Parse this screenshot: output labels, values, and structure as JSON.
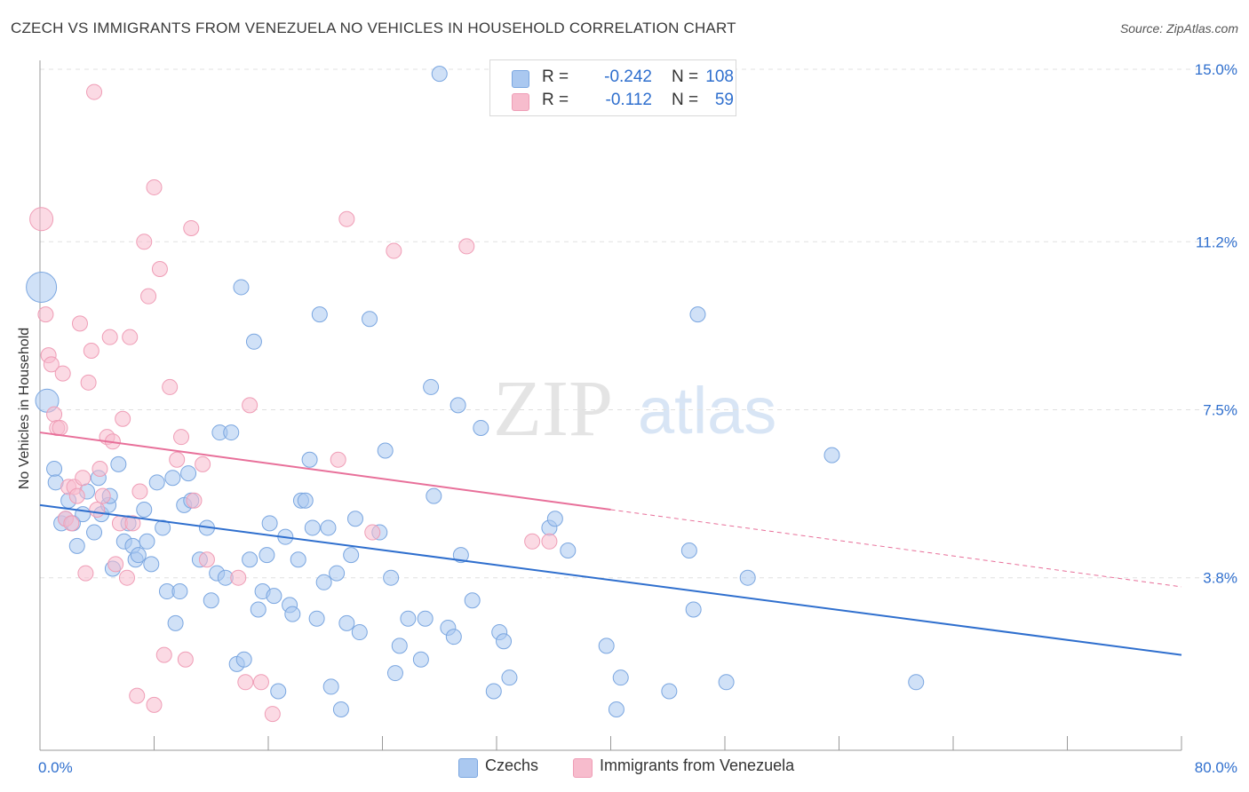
{
  "header": {
    "title": "CZECH VS IMMIGRANTS FROM VENEZUELA NO VEHICLES IN HOUSEHOLD CORRELATION CHART",
    "source": "Source: ZipAtlas.com"
  },
  "legend": {
    "rows": [
      {
        "r_label": "R =",
        "r_value": "-0.242",
        "n_label": "N =",
        "n_value": "108"
      },
      {
        "r_label": "R =",
        "r_value": "-0.112",
        "n_label": "N =",
        "n_value": "59"
      }
    ]
  },
  "bottom_legend": [
    "Czechs",
    "Immigrants from Venezuela"
  ],
  "colors": {
    "czechs_fill": "#aac8f0",
    "czechs_stroke": "#7aa6e0",
    "czechs_line": "#2f6fce",
    "venezuela_fill": "#f7bccd",
    "venezuela_stroke": "#ef9db6",
    "venezuela_line": "#e8709a",
    "tick_label": "#2f6fce",
    "grid": "#e0e0e0"
  },
  "chart_data": {
    "type": "scatter",
    "title": "CZECH VS IMMIGRANTS FROM VENEZUELA NO VEHICLES IN HOUSEHOLD CORRELATION CHART",
    "xlabel": "",
    "ylabel": "No Vehicles in Household",
    "xlim": [
      0,
      80
    ],
    "ylim": [
      0,
      15.0
    ],
    "x_tick_labels": [
      "0.0%",
      "80.0%"
    ],
    "y_ticks": [
      3.8,
      7.5,
      11.2,
      15.0
    ],
    "y_tick_labels": [
      "3.8%",
      "7.5%",
      "11.2%",
      "15.0%"
    ],
    "grid": true,
    "legend_position": "top-center",
    "watermark": "ZIPatlas",
    "series": [
      {
        "name": "Czechs",
        "r": -0.242,
        "n": 108,
        "trend": {
          "x": [
            0,
            80
          ],
          "y": [
            5.4,
            2.1
          ]
        },
        "points": [
          {
            "x": 0.1,
            "y": 10.2,
            "s": 3
          },
          {
            "x": 0.5,
            "y": 7.7,
            "s": 2
          },
          {
            "x": 1.0,
            "y": 6.2
          },
          {
            "x": 1.1,
            "y": 5.9
          },
          {
            "x": 1.5,
            "y": 5.0
          },
          {
            "x": 1.8,
            "y": 5.1
          },
          {
            "x": 2.0,
            "y": 5.5
          },
          {
            "x": 2.3,
            "y": 5.0
          },
          {
            "x": 2.6,
            "y": 4.5
          },
          {
            "x": 3.0,
            "y": 5.2
          },
          {
            "x": 3.3,
            "y": 5.7
          },
          {
            "x": 3.8,
            "y": 4.8
          },
          {
            "x": 4.1,
            "y": 6.0
          },
          {
            "x": 4.3,
            "y": 5.2
          },
          {
            "x": 4.8,
            "y": 5.4
          },
          {
            "x": 4.9,
            "y": 5.6
          },
          {
            "x": 5.1,
            "y": 4.0
          },
          {
            "x": 5.5,
            "y": 6.3
          },
          {
            "x": 5.9,
            "y": 4.6
          },
          {
            "x": 6.2,
            "y": 5.0
          },
          {
            "x": 6.5,
            "y": 4.5
          },
          {
            "x": 6.7,
            "y": 4.2
          },
          {
            "x": 6.9,
            "y": 4.3
          },
          {
            "x": 7.3,
            "y": 5.3
          },
          {
            "x": 7.5,
            "y": 4.6
          },
          {
            "x": 7.8,
            "y": 4.1
          },
          {
            "x": 8.2,
            "y": 5.9
          },
          {
            "x": 8.6,
            "y": 4.9
          },
          {
            "x": 8.9,
            "y": 3.5
          },
          {
            "x": 9.3,
            "y": 6.0
          },
          {
            "x": 9.5,
            "y": 2.8
          },
          {
            "x": 9.8,
            "y": 3.5
          },
          {
            "x": 10.1,
            "y": 5.4
          },
          {
            "x": 10.4,
            "y": 6.1
          },
          {
            "x": 10.6,
            "y": 5.5
          },
          {
            "x": 11.2,
            "y": 4.2
          },
          {
            "x": 11.7,
            "y": 4.9
          },
          {
            "x": 12.0,
            "y": 3.3
          },
          {
            "x": 12.4,
            "y": 3.9
          },
          {
            "x": 12.6,
            "y": 7.0
          },
          {
            "x": 13.0,
            "y": 3.8
          },
          {
            "x": 13.4,
            "y": 7.0
          },
          {
            "x": 13.8,
            "y": 1.9
          },
          {
            "x": 14.1,
            "y": 10.2
          },
          {
            "x": 14.3,
            "y": 2.0
          },
          {
            "x": 14.7,
            "y": 4.2
          },
          {
            "x": 15.0,
            "y": 9.0
          },
          {
            "x": 15.3,
            "y": 3.1
          },
          {
            "x": 15.6,
            "y": 3.5
          },
          {
            "x": 15.9,
            "y": 4.3
          },
          {
            "x": 16.1,
            "y": 5.0
          },
          {
            "x": 16.4,
            "y": 3.4
          },
          {
            "x": 16.7,
            "y": 1.3
          },
          {
            "x": 17.2,
            "y": 4.7
          },
          {
            "x": 17.5,
            "y": 3.2
          },
          {
            "x": 17.7,
            "y": 3.0
          },
          {
            "x": 18.1,
            "y": 4.2
          },
          {
            "x": 18.3,
            "y": 5.5
          },
          {
            "x": 18.6,
            "y": 5.5
          },
          {
            "x": 18.9,
            "y": 6.4
          },
          {
            "x": 19.1,
            "y": 4.9
          },
          {
            "x": 19.4,
            "y": 2.9
          },
          {
            "x": 19.6,
            "y": 9.6
          },
          {
            "x": 19.9,
            "y": 3.7
          },
          {
            "x": 20.2,
            "y": 4.9
          },
          {
            "x": 20.4,
            "y": 1.4
          },
          {
            "x": 20.8,
            "y": 3.9
          },
          {
            "x": 21.1,
            "y": 0.9
          },
          {
            "x": 21.5,
            "y": 2.8
          },
          {
            "x": 21.8,
            "y": 4.3
          },
          {
            "x": 22.1,
            "y": 5.1
          },
          {
            "x": 22.4,
            "y": 2.6
          },
          {
            "x": 23.1,
            "y": 9.5
          },
          {
            "x": 23.8,
            "y": 4.8
          },
          {
            "x": 24.2,
            "y": 6.6
          },
          {
            "x": 24.6,
            "y": 3.8
          },
          {
            "x": 24.9,
            "y": 1.7
          },
          {
            "x": 25.2,
            "y": 2.3
          },
          {
            "x": 25.8,
            "y": 2.9
          },
          {
            "x": 26.7,
            "y": 2.0
          },
          {
            "x": 27.0,
            "y": 2.9
          },
          {
            "x": 27.4,
            "y": 8.0
          },
          {
            "x": 27.6,
            "y": 5.6
          },
          {
            "x": 28.0,
            "y": 14.9
          },
          {
            "x": 28.6,
            "y": 2.7
          },
          {
            "x": 29.0,
            "y": 2.5
          },
          {
            "x": 29.3,
            "y": 7.6
          },
          {
            "x": 29.5,
            "y": 4.3
          },
          {
            "x": 30.3,
            "y": 3.3
          },
          {
            "x": 30.9,
            "y": 7.1
          },
          {
            "x": 31.8,
            "y": 1.3
          },
          {
            "x": 32.2,
            "y": 2.6
          },
          {
            "x": 32.5,
            "y": 2.4
          },
          {
            "x": 32.9,
            "y": 1.6
          },
          {
            "x": 35.7,
            "y": 4.9
          },
          {
            "x": 36.1,
            "y": 5.1
          },
          {
            "x": 37.0,
            "y": 4.4
          },
          {
            "x": 39.7,
            "y": 2.3
          },
          {
            "x": 40.4,
            "y": 0.9
          },
          {
            "x": 40.7,
            "y": 1.6
          },
          {
            "x": 44.1,
            "y": 1.3
          },
          {
            "x": 45.5,
            "y": 4.4
          },
          {
            "x": 45.8,
            "y": 3.1
          },
          {
            "x": 46.1,
            "y": 9.6
          },
          {
            "x": 48.1,
            "y": 1.5
          },
          {
            "x": 49.6,
            "y": 3.8
          },
          {
            "x": 55.5,
            "y": 6.5
          },
          {
            "x": 61.4,
            "y": 1.5
          }
        ]
      },
      {
        "name": "Immigrants from Venezuela",
        "r": -0.112,
        "n": 59,
        "trend": {
          "x": [
            0,
            40
          ],
          "y": [
            7.0,
            5.3
          ],
          "dashed_to": {
            "x": 80,
            "y": 3.6
          }
        },
        "points": [
          {
            "x": 0.1,
            "y": 11.7,
            "s": 2
          },
          {
            "x": 0.4,
            "y": 9.6
          },
          {
            "x": 0.6,
            "y": 8.7
          },
          {
            "x": 0.8,
            "y": 8.5
          },
          {
            "x": 1.0,
            "y": 7.4
          },
          {
            "x": 1.2,
            "y": 7.1
          },
          {
            "x": 1.4,
            "y": 7.1
          },
          {
            "x": 1.6,
            "y": 8.3
          },
          {
            "x": 1.8,
            "y": 5.1
          },
          {
            "x": 2.0,
            "y": 5.8
          },
          {
            "x": 2.2,
            "y": 5.0
          },
          {
            "x": 2.4,
            "y": 5.8
          },
          {
            "x": 2.6,
            "y": 5.6
          },
          {
            "x": 2.8,
            "y": 9.4
          },
          {
            "x": 3.0,
            "y": 6.0
          },
          {
            "x": 3.2,
            "y": 3.9
          },
          {
            "x": 3.4,
            "y": 8.1
          },
          {
            "x": 3.6,
            "y": 8.8
          },
          {
            "x": 3.8,
            "y": 14.5
          },
          {
            "x": 4.0,
            "y": 5.3
          },
          {
            "x": 4.2,
            "y": 6.2
          },
          {
            "x": 4.4,
            "y": 5.6
          },
          {
            "x": 4.7,
            "y": 6.9
          },
          {
            "x": 4.9,
            "y": 9.1
          },
          {
            "x": 5.1,
            "y": 6.8
          },
          {
            "x": 5.3,
            "y": 4.1
          },
          {
            "x": 5.6,
            "y": 5.0
          },
          {
            "x": 5.8,
            "y": 7.3
          },
          {
            "x": 6.1,
            "y": 3.8
          },
          {
            "x": 6.3,
            "y": 9.1
          },
          {
            "x": 6.5,
            "y": 5.0
          },
          {
            "x": 6.8,
            "y": 1.2
          },
          {
            "x": 7.0,
            "y": 5.7
          },
          {
            "x": 7.3,
            "y": 11.2
          },
          {
            "x": 7.6,
            "y": 10.0
          },
          {
            "x": 8.0,
            "y": 1.0
          },
          {
            "x": 8.0,
            "y": 12.4
          },
          {
            "x": 8.4,
            "y": 10.6
          },
          {
            "x": 8.7,
            "y": 2.1
          },
          {
            "x": 9.1,
            "y": 8.0
          },
          {
            "x": 9.6,
            "y": 6.4
          },
          {
            "x": 9.9,
            "y": 6.9
          },
          {
            "x": 10.2,
            "y": 2.0
          },
          {
            "x": 10.6,
            "y": 11.5
          },
          {
            "x": 10.8,
            "y": 5.5
          },
          {
            "x": 11.4,
            "y": 6.3
          },
          {
            "x": 11.7,
            "y": 4.2
          },
          {
            "x": 13.9,
            "y": 3.8
          },
          {
            "x": 14.4,
            "y": 1.5
          },
          {
            "x": 14.7,
            "y": 7.6
          },
          {
            "x": 15.5,
            "y": 1.5
          },
          {
            "x": 16.3,
            "y": 0.8
          },
          {
            "x": 20.9,
            "y": 6.4
          },
          {
            "x": 21.5,
            "y": 11.7
          },
          {
            "x": 24.8,
            "y": 11.0
          },
          {
            "x": 29.9,
            "y": 11.1
          },
          {
            "x": 34.5,
            "y": 4.6
          },
          {
            "x": 35.7,
            "y": 4.6
          },
          {
            "x": 23.3,
            "y": 4.8
          }
        ]
      }
    ]
  }
}
